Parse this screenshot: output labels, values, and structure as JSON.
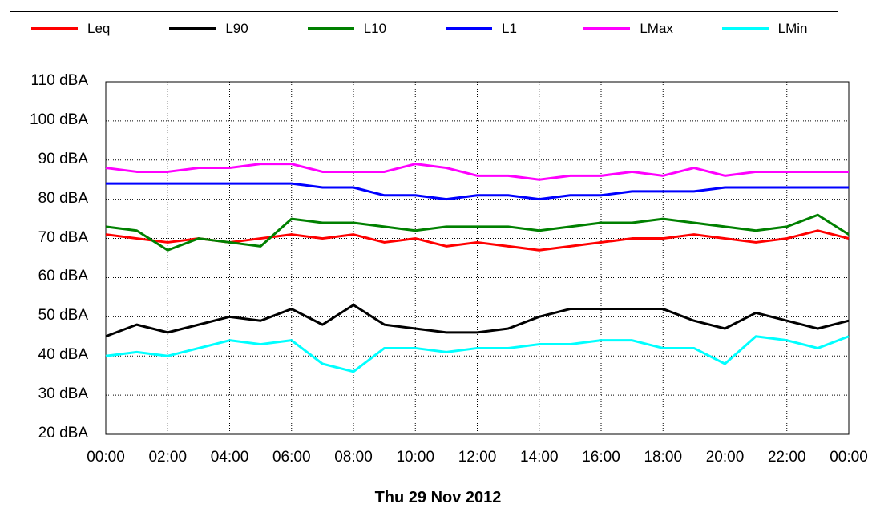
{
  "chart_data": {
    "type": "line",
    "title": "",
    "xlabel": "Thu 29 Nov 2012",
    "ylabel": "",
    "ylim": [
      20,
      110
    ],
    "yticks": [
      "20 dBA",
      "30 dBA",
      "40 dBA",
      "50 dBA",
      "60 dBA",
      "70 dBA",
      "80 dBA",
      "90 dBA",
      "100 dBA",
      "110 dBA"
    ],
    "xticks": [
      "00:00",
      "02:00",
      "04:00",
      "06:00",
      "08:00",
      "10:00",
      "12:00",
      "14:00",
      "16:00",
      "18:00",
      "20:00",
      "22:00",
      "00:00"
    ],
    "x_hours": [
      0,
      1,
      2,
      3,
      4,
      5,
      6,
      7,
      8,
      9,
      10,
      11,
      12,
      13,
      14,
      15,
      16,
      17,
      18,
      19,
      20,
      21,
      22,
      23,
      24
    ],
    "grid": true,
    "legend_position": "top",
    "series": [
      {
        "name": "Leq",
        "color": "#ff0000",
        "values": [
          71,
          70,
          69,
          70,
          69,
          70,
          71,
          70,
          71,
          69,
          70,
          68,
          69,
          68,
          67,
          68,
          69,
          70,
          70,
          71,
          70,
          69,
          70,
          72,
          70
        ]
      },
      {
        "name": "L90",
        "color": "#000000",
        "values": [
          45,
          48,
          46,
          48,
          50,
          49,
          52,
          48,
          53,
          48,
          47,
          46,
          46,
          47,
          50,
          52,
          52,
          52,
          52,
          49,
          47,
          51,
          49,
          47,
          49
        ]
      },
      {
        "name": "L10",
        "color": "#008000",
        "values": [
          73,
          72,
          67,
          70,
          69,
          68,
          75,
          74,
          74,
          73,
          72,
          73,
          73,
          73,
          72,
          73,
          74,
          74,
          75,
          74,
          73,
          72,
          73,
          76,
          71
        ]
      },
      {
        "name": "L1",
        "color": "#0000ff",
        "values": [
          84,
          84,
          84,
          84,
          84,
          84,
          84,
          83,
          83,
          81,
          81,
          80,
          81,
          81,
          80,
          81,
          81,
          82,
          82,
          82,
          83,
          83,
          83,
          83,
          83
        ]
      },
      {
        "name": "LMax",
        "color": "#ff00ff",
        "values": [
          88,
          87,
          87,
          88,
          88,
          89,
          89,
          87,
          87,
          87,
          89,
          88,
          86,
          86,
          85,
          86,
          86,
          87,
          86,
          88,
          86,
          87,
          87,
          87,
          87
        ]
      },
      {
        "name": "LMin",
        "color": "#00ffff",
        "values": [
          40,
          41,
          40,
          42,
          44,
          43,
          44,
          38,
          36,
          42,
          42,
          41,
          42,
          42,
          43,
          43,
          44,
          44,
          42,
          42,
          38,
          45,
          44,
          42,
          45
        ]
      }
    ]
  }
}
